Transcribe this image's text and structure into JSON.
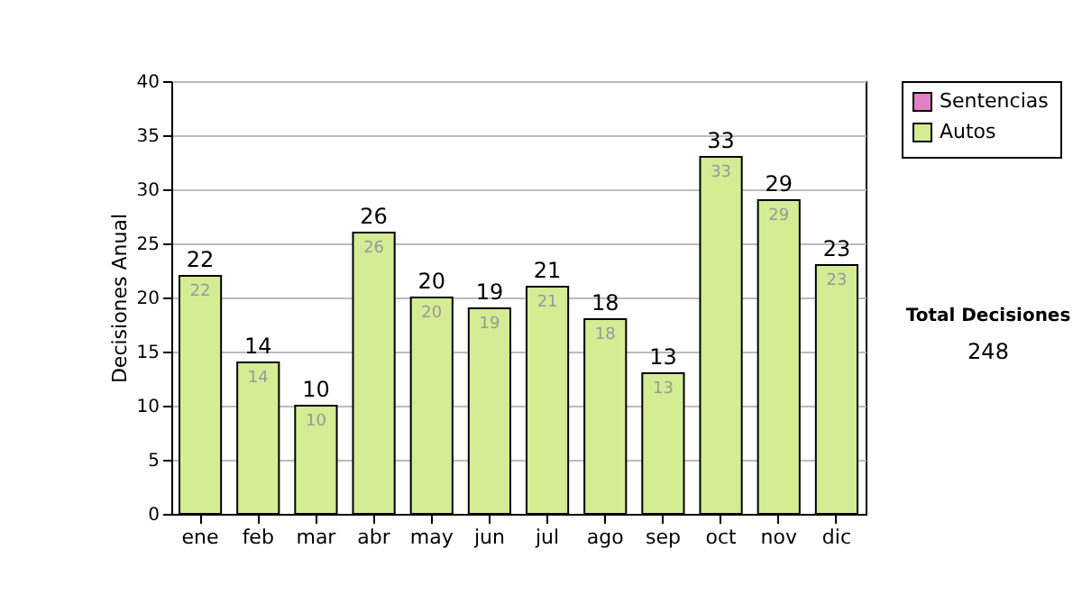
{
  "chart_data": {
    "type": "bar",
    "ylabel": "Decisiones Anual",
    "categories": [
      "ene",
      "feb",
      "mar",
      "abr",
      "may",
      "jun",
      "jul",
      "ago",
      "sep",
      "oct",
      "nov",
      "dic"
    ],
    "series": [
      {
        "name": "Sentencias",
        "color": "#e080c8",
        "values": [
          0,
          0,
          0,
          0,
          0,
          0,
          0,
          0,
          0,
          0,
          0,
          0
        ]
      },
      {
        "name": "Autos",
        "color": "#d4ec94",
        "values": [
          22,
          14,
          10,
          26,
          20,
          19,
          21,
          18,
          13,
          33,
          29,
          23
        ],
        "value_labels": [
          "22",
          "14",
          "10",
          "26",
          "20",
          "19",
          "21",
          "18",
          "13",
          "33",
          "29",
          "23"
        ]
      }
    ],
    "stacked": true,
    "totals": [
      "22",
      "14",
      "10",
      "26",
      "20",
      "19",
      "21",
      "18",
      "13",
      "33",
      "29",
      "23"
    ],
    "ylim": [
      0,
      40
    ],
    "yticks": [
      0,
      5,
      10,
      15,
      20,
      25,
      30,
      35,
      40
    ],
    "grid": "y",
    "legend": "right",
    "annotations": [
      "Total Decisiones",
      "248"
    ]
  }
}
